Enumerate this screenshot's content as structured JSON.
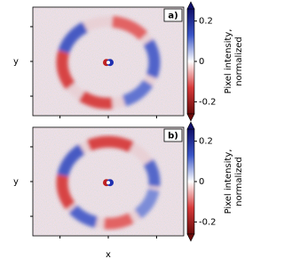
{
  "chart_data": [
    {
      "type": "image",
      "panel_label": "a)",
      "ylabel": "y",
      "colorbar_label": [
        "Pixel intensity,",
        "normalized"
      ],
      "clim": [
        -0.26,
        0.26
      ],
      "cticks": [
        -0.2,
        0,
        0.2
      ]
    },
    {
      "type": "image",
      "panel_label": "b)",
      "ylabel": "y",
      "xlabel": "x",
      "colorbar_label": [
        "Pixel intensity,",
        "normalized"
      ],
      "clim": [
        -0.26,
        0.26
      ],
      "cticks": [
        -0.2,
        0,
        0.2
      ]
    }
  ]
}
